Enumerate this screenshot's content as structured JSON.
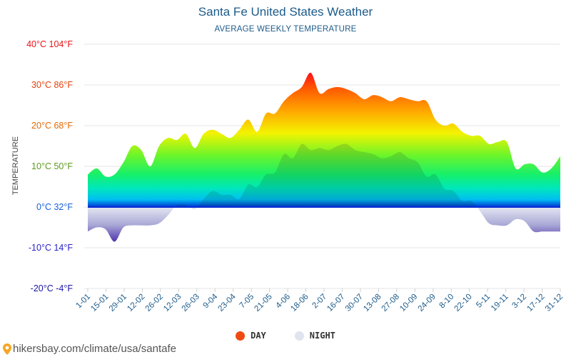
{
  "header": {
    "title": "Santa Fe United States Weather",
    "subtitle": "AVERAGE WEEKLY TEMPERATURE"
  },
  "legend": {
    "day_label": "DAY",
    "night_label": "NIGHT",
    "day_color": "#ef4a12",
    "night_color": "#dfe4ee"
  },
  "source": "hikersbay.com/climate/usa/santafe",
  "chart_data": {
    "type": "area",
    "title": "Santa Fe United States Weather",
    "subtitle": "AVERAGE WEEKLY TEMPERATURE",
    "ylabel": "TEMPERATURE",
    "ylim": [
      -20,
      40
    ],
    "y_ticks": [
      {
        "value": 40,
        "label": "40°C 104°F",
        "color": "#e8141a"
      },
      {
        "value": 30,
        "label": "30°C 86°F",
        "color": "#e8400c"
      },
      {
        "value": 20,
        "label": "20°C 68°F",
        "color": "#e46a06"
      },
      {
        "value": 10,
        "label": "10°C 50°F",
        "color": "#5d9a1e"
      },
      {
        "value": 0,
        "label": "0°C 32°F",
        "color": "#1560d8"
      },
      {
        "value": -10,
        "label": "-10°C 14°F",
        "color": "#2b22c8"
      },
      {
        "value": -20,
        "label": "-20°C -4°F",
        "color": "#1a14a8"
      }
    ],
    "x_tick_labels": [
      "1-01",
      "15-01",
      "29-01",
      "12-02",
      "26-02",
      "12-03",
      "26-03",
      "9-04",
      "23-04",
      "7-05",
      "21-05",
      "4-06",
      "18-06",
      "2-07",
      "16-07",
      "30-07",
      "13-08",
      "27-08",
      "10-09",
      "24-09",
      "8-10",
      "22-10",
      "5-11",
      "19-11",
      "3-12",
      "17-12",
      "31-12"
    ],
    "grid": true,
    "series": [
      {
        "name": "DAY",
        "values": [
          8,
          9.5,
          7.5,
          8,
          11,
          15,
          14,
          10,
          15,
          17,
          16.5,
          18,
          14.5,
          18,
          19,
          18,
          17,
          19,
          21.5,
          18.5,
          23,
          23,
          26,
          28,
          29.5,
          33,
          28,
          29,
          29.5,
          29,
          28,
          26.5,
          27.5,
          27,
          26,
          27,
          26.5,
          26,
          26,
          21.5,
          20,
          20.5,
          18.5,
          17.5,
          17.5,
          15.5,
          16,
          16,
          9.5,
          10.5,
          10.5,
          8.5,
          9.5,
          12.5
        ]
      },
      {
        "name": "NIGHT",
        "values": [
          -6,
          -5,
          -5.5,
          -8.5,
          -5,
          -4.5,
          -4.5,
          -4.5,
          -4,
          -2,
          0.5,
          0.5,
          -0.5,
          2,
          4,
          3,
          3,
          2,
          5.5,
          5,
          8,
          8.5,
          13,
          12,
          15.5,
          14,
          14.5,
          14,
          15,
          15.5,
          14,
          13.5,
          13,
          12,
          12.5,
          13.5,
          12,
          11,
          7.5,
          8,
          4.5,
          4,
          1.5,
          1.5,
          -1,
          -4,
          -4.5,
          -4.5,
          -3,
          -3.5,
          -6,
          -6,
          -6,
          -6
        ]
      }
    ]
  }
}
